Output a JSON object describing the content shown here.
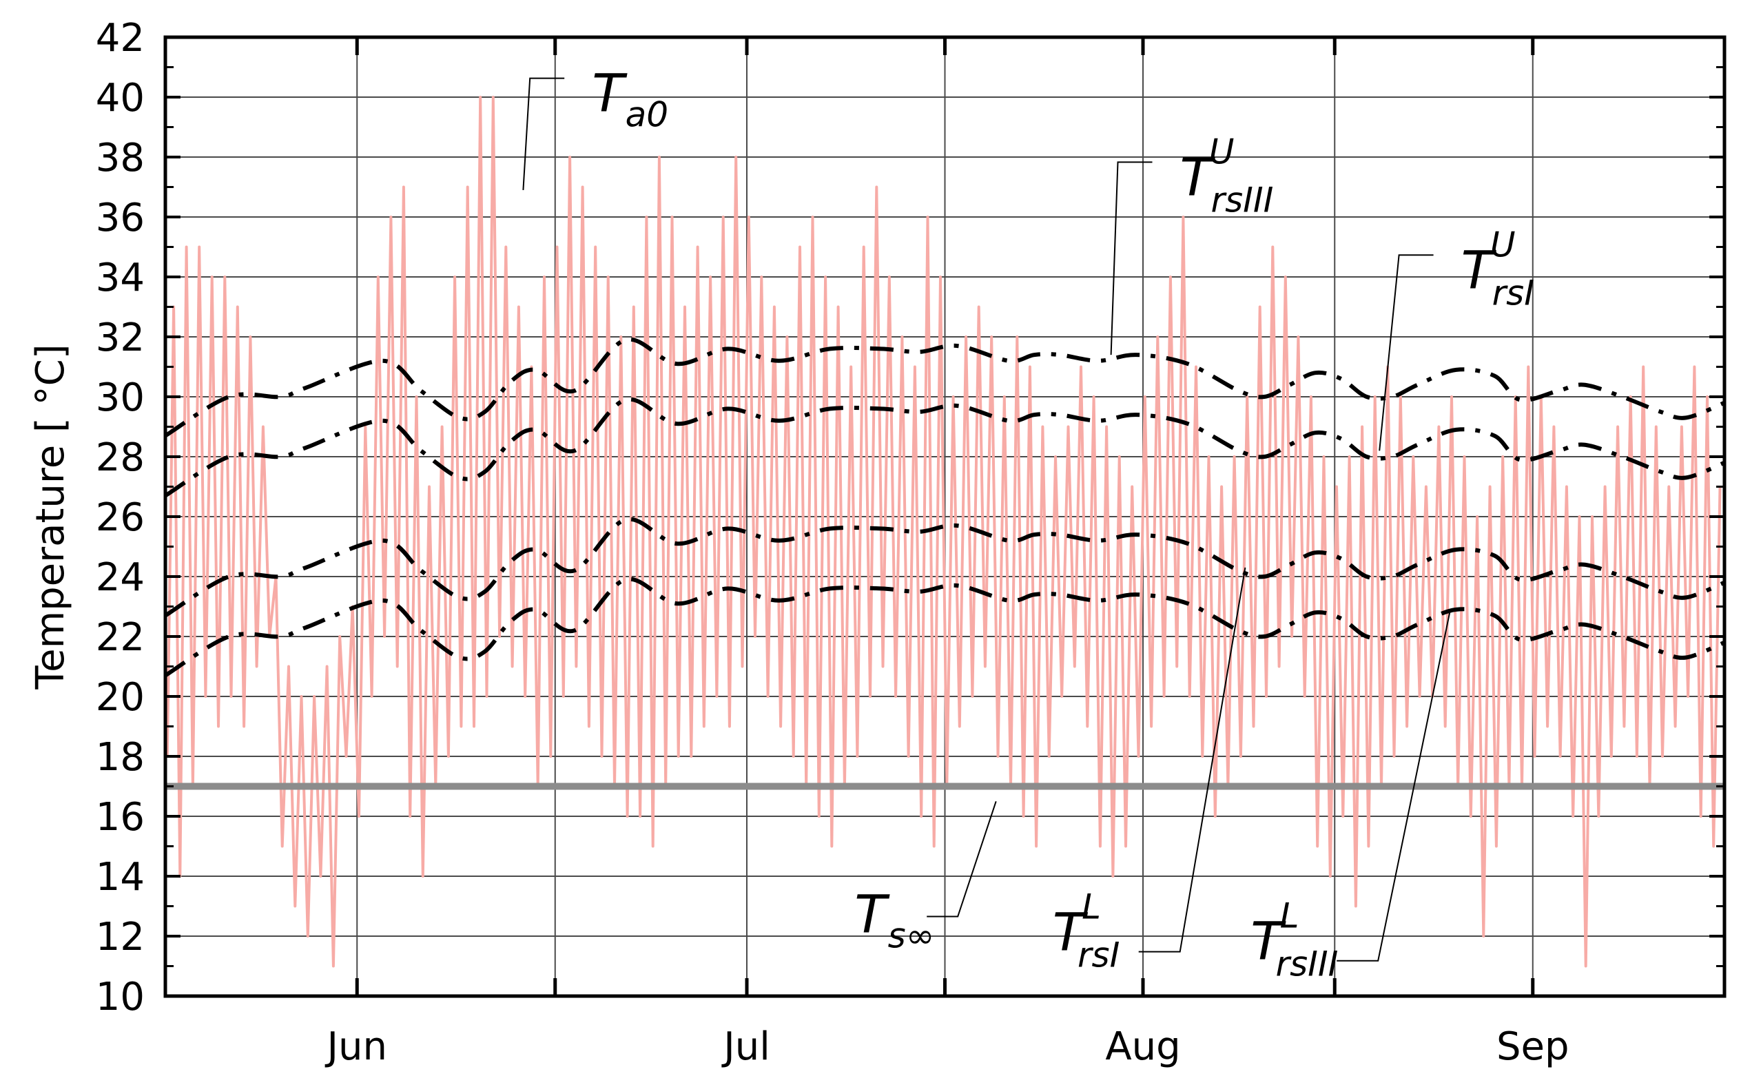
{
  "chart_data": {
    "type": "line",
    "title": "",
    "xlabel": "",
    "ylabel": "Temperature [ °C]",
    "ylim": [
      10,
      42
    ],
    "yticks": [
      10,
      12,
      14,
      16,
      18,
      20,
      22,
      24,
      26,
      28,
      30,
      32,
      34,
      36,
      38,
      40,
      42
    ],
    "xlim_days": [
      0,
      122
    ],
    "month_boundaries_days": [
      0,
      15,
      46,
      76,
      107
    ],
    "month_labels": [
      {
        "label": "Jun",
        "day": 15
      },
      {
        "label": "Jul",
        "day": 45.5
      },
      {
        "label": "Aug",
        "day": 76.5
      },
      {
        "label": "Sep",
        "day": 107
      }
    ],
    "x_gridlines_days": [
      15,
      30.5,
      45.5,
      61,
      76.5,
      91.5,
      107
    ],
    "grid": true,
    "series": [
      {
        "name": "Ta0",
        "style": "solid",
        "color": "#f7aba6",
        "daily_min": [
          18,
          14,
          17,
          20,
          19,
          20,
          19,
          21,
          22,
          15,
          13,
          12,
          14,
          11,
          18,
          16,
          20,
          22,
          21,
          16,
          14,
          17,
          18,
          19,
          19,
          20,
          22,
          21,
          20,
          17,
          18,
          20,
          21,
          19,
          18,
          17,
          16,
          16,
          15,
          17,
          18,
          18,
          19,
          20,
          19,
          21,
          22,
          20,
          19,
          18,
          17,
          16,
          15,
          17,
          18,
          20,
          21,
          20,
          18,
          16,
          15,
          17,
          19,
          20,
          21,
          18,
          17,
          16,
          15,
          18,
          20,
          21,
          19,
          15,
          14,
          15,
          18,
          19,
          20,
          21,
          20,
          18,
          16,
          17,
          18,
          19,
          20,
          21,
          22,
          20,
          15,
          14,
          16,
          13,
          15,
          17,
          18,
          19,
          20,
          20,
          19,
          17,
          16,
          12,
          15,
          17,
          17,
          18,
          19,
          18,
          16,
          11,
          16,
          18,
          19,
          18,
          17,
          18,
          19,
          20,
          16,
          15
        ],
        "daily_max": [
          33,
          35,
          35,
          34,
          34,
          33,
          32,
          29,
          24,
          21,
          20,
          20,
          21,
          22,
          23,
          29,
          34,
          36,
          37,
          30,
          27,
          29,
          34,
          37,
          40,
          40,
          35,
          33,
          31,
          34,
          35,
          38,
          37,
          35,
          34,
          32,
          33,
          36,
          38,
          36,
          33,
          35,
          34,
          36,
          38,
          36,
          34,
          33,
          32,
          35,
          36,
          34,
          33,
          31,
          35,
          37,
          34,
          32,
          31,
          36,
          34,
          30,
          32,
          33,
          32,
          30,
          32,
          31,
          29,
          28,
          29,
          31,
          30,
          29,
          28,
          27,
          30,
          32,
          34,
          36,
          31,
          28,
          27,
          28,
          30,
          33,
          35,
          34,
          32,
          30,
          28,
          27,
          28,
          29,
          30,
          31,
          30,
          28,
          27,
          29,
          30,
          28,
          26,
          27,
          28,
          30,
          31,
          30,
          29,
          27,
          26,
          26,
          27,
          29,
          30,
          31,
          29,
          27,
          29,
          31,
          30,
          27
        ]
      },
      {
        "name": "TrsIII_U",
        "style": "dashdot",
        "color": "#000000",
        "x_days": [
          0,
          5,
          9,
          11,
          17,
          20,
          23,
          25,
          27,
          29,
          32,
          36,
          40,
          44,
          48,
          52,
          56,
          59,
          62,
          66,
          68,
          70,
          73,
          76,
          80,
          84,
          86,
          88,
          90,
          92,
          94,
          96,
          98,
          101,
          104,
          106,
          109,
          111,
          114,
          117,
          119,
          122
        ],
        "values": [
          28.7,
          30.0,
          30.0,
          30.3,
          31.2,
          30.2,
          29.3,
          29.5,
          30.5,
          30.9,
          30.2,
          31.9,
          31.1,
          31.6,
          31.2,
          31.6,
          31.6,
          31.5,
          31.7,
          31.2,
          31.4,
          31.4,
          31.2,
          31.4,
          31.1,
          30.2,
          30.0,
          30.4,
          30.8,
          30.6,
          30.0,
          30.0,
          30.4,
          30.9,
          30.7,
          29.9,
          30.2,
          30.4,
          30.0,
          29.5,
          29.3,
          29.8
        ]
      },
      {
        "name": "TrsI_U",
        "style": "dashdot",
        "color": "#000000",
        "x_days": [
          0,
          5,
          9,
          11,
          17,
          20,
          23,
          25,
          27,
          29,
          32,
          36,
          40,
          44,
          48,
          52,
          56,
          59,
          62,
          66,
          68,
          70,
          73,
          76,
          80,
          84,
          86,
          88,
          90,
          92,
          94,
          96,
          98,
          101,
          104,
          106,
          109,
          111,
          114,
          117,
          119,
          122
        ],
        "values": [
          26.7,
          28.0,
          28.0,
          28.3,
          29.2,
          28.2,
          27.3,
          27.5,
          28.5,
          28.9,
          28.2,
          29.9,
          29.1,
          29.6,
          29.2,
          29.6,
          29.6,
          29.5,
          29.7,
          29.2,
          29.4,
          29.4,
          29.2,
          29.4,
          29.1,
          28.2,
          28.0,
          28.4,
          28.8,
          28.6,
          28.0,
          28.0,
          28.4,
          28.9,
          28.7,
          27.9,
          28.2,
          28.4,
          28.0,
          27.5,
          27.3,
          27.8
        ]
      },
      {
        "name": "TrsI_L",
        "style": "dashdot",
        "color": "#000000",
        "x_days": [
          0,
          5,
          9,
          11,
          17,
          20,
          23,
          25,
          27,
          29,
          32,
          36,
          40,
          44,
          48,
          52,
          56,
          59,
          62,
          66,
          68,
          70,
          73,
          76,
          80,
          84,
          86,
          88,
          90,
          92,
          94,
          96,
          98,
          101,
          104,
          106,
          109,
          111,
          114,
          117,
          119,
          122
        ],
        "values": [
          22.7,
          24.0,
          24.0,
          24.3,
          25.2,
          24.2,
          23.3,
          23.5,
          24.5,
          24.9,
          24.2,
          25.9,
          25.1,
          25.6,
          25.2,
          25.6,
          25.6,
          25.5,
          25.7,
          25.2,
          25.4,
          25.4,
          25.2,
          25.4,
          25.1,
          24.2,
          24.0,
          24.4,
          24.8,
          24.6,
          24.0,
          24.0,
          24.4,
          24.9,
          24.7,
          23.9,
          24.2,
          24.4,
          24.0,
          23.5,
          23.3,
          23.8
        ]
      },
      {
        "name": "TrsIII_L",
        "style": "dashdot",
        "color": "#000000",
        "x_days": [
          0,
          5,
          9,
          11,
          17,
          20,
          23,
          25,
          27,
          29,
          32,
          36,
          40,
          44,
          48,
          52,
          56,
          59,
          62,
          66,
          68,
          70,
          73,
          76,
          80,
          84,
          86,
          88,
          90,
          92,
          94,
          96,
          98,
          101,
          104,
          106,
          109,
          111,
          114,
          117,
          119,
          122
        ],
        "values": [
          20.7,
          22.0,
          22.0,
          22.3,
          23.2,
          22.2,
          21.3,
          21.5,
          22.5,
          22.9,
          22.2,
          23.9,
          23.1,
          23.6,
          23.2,
          23.6,
          23.6,
          23.5,
          23.7,
          23.2,
          23.4,
          23.4,
          23.2,
          23.4,
          23.1,
          22.2,
          22.0,
          22.4,
          22.8,
          22.6,
          22.0,
          22.0,
          22.4,
          22.9,
          22.7,
          21.9,
          22.2,
          22.4,
          22.0,
          21.5,
          21.3,
          21.8
        ]
      },
      {
        "name": "Ts_inf",
        "style": "solid",
        "color": "#8c8c8c",
        "x_days": [
          0,
          122
        ],
        "values": [
          17,
          17
        ]
      }
    ],
    "annotations": [
      {
        "id": "ta0",
        "main": "T",
        "sub": "a0",
        "sup": "",
        "anchor_day": 28,
        "anchor_value": 36.9,
        "label_day": 35,
        "label_value": 40.4
      },
      {
        "id": "trsIII-u",
        "main": "T",
        "sub": "rsIII",
        "sup": "U",
        "anchor_day": 74,
        "anchor_value": 31.4,
        "label_day": 81,
        "label_value": 37.6
      },
      {
        "id": "trsI-u",
        "main": "T",
        "sub": "rsI",
        "sup": "U",
        "anchor_day": 95,
        "anchor_value": 28.2,
        "label_day": 103,
        "label_value": 34.5
      },
      {
        "id": "ts-inf",
        "main": "T",
        "sub": "s∞",
        "sup": "",
        "anchor_day": 65,
        "anchor_value": 16.5,
        "label_day": 55,
        "label_value": 13.0
      },
      {
        "id": "trsI-l",
        "main": "T",
        "sub": "rsI",
        "sup": "L",
        "anchor_day": 84.5,
        "anchor_value": 24.3,
        "label_day": 70.5,
        "label_value": 12.4
      },
      {
        "id": "trsIII-l",
        "main": "T",
        "sub": "rsIII",
        "sup": "L",
        "anchor_day": 100.5,
        "anchor_value": 22.8,
        "label_day": 86,
        "label_value": 12.1
      }
    ],
    "legend": "none"
  }
}
